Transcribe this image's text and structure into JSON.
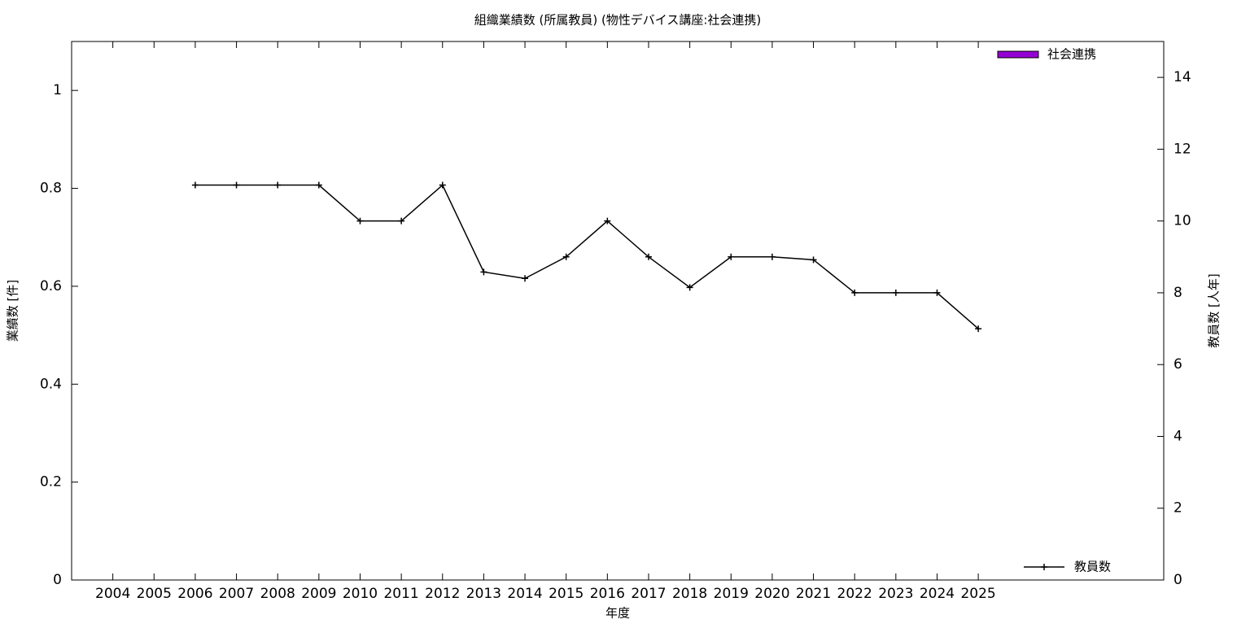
{
  "chart_data": {
    "type": "bar-line",
    "title": "組織業績数 (所属教員) (物性デバイス講座:社会連携)",
    "x_label": "年度",
    "y_label": "業績数 [件]",
    "y2_label": "教員数 [人年]",
    "categories": [
      "2004",
      "2005",
      "2006",
      "2007",
      "2008",
      "2009",
      "2010",
      "2011",
      "2012",
      "2013",
      "2014",
      "2015",
      "2016",
      "2017",
      "2018",
      "2019",
      "2020",
      "2021",
      "2022",
      "2023",
      "2024",
      "2025"
    ],
    "ylim": [
      0,
      1.1
    ],
    "yticks": [
      0,
      0.2,
      0.4,
      0.6,
      0.8,
      1
    ],
    "y2lim": [
      0,
      15
    ],
    "y2ticks": [
      0,
      2,
      4,
      6,
      8,
      10,
      12,
      14
    ],
    "series": [
      {
        "name": "社会連携",
        "type": "bar",
        "color": "#9400d3",
        "legend": "top-right",
        "values": [
          0,
          0,
          0,
          0,
          0,
          0,
          0,
          0,
          0,
          0,
          0,
          0,
          0,
          0,
          0,
          0,
          0,
          0,
          0,
          0,
          0,
          0
        ]
      },
      {
        "name": "教員数",
        "type": "line",
        "axis": "y2",
        "color": "#000000",
        "legend": "bottom-right",
        "values": [
          null,
          null,
          11,
          11,
          11,
          11,
          10,
          10,
          11,
          8.58,
          8.4,
          9,
          10,
          9,
          8.15,
          9,
          9,
          8.92,
          8,
          8,
          8,
          7
        ]
      }
    ]
  }
}
